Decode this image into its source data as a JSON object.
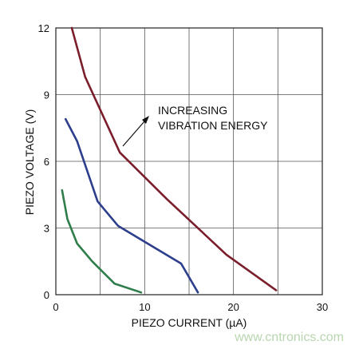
{
  "chart_data": {
    "type": "line",
    "title": "",
    "xlabel": "PIEZO CURRENT (µA)",
    "ylabel": "PIEZO VOLTAGE (V)",
    "xlim": [
      0,
      30
    ],
    "ylim": [
      0,
      12
    ],
    "xticks": [
      0,
      10,
      20,
      30
    ],
    "yticks": [
      0,
      3,
      6,
      9,
      12
    ],
    "minor_x_grid_step": 5,
    "grid": true,
    "annotation": [
      "INCREASING",
      "VIBRATION ENERGY"
    ],
    "series": [
      {
        "color": "#7b1e2b",
        "x": [
          1.8,
          3.3,
          7.2,
          12.5,
          19.2,
          24.8
        ],
        "y": [
          12.0,
          9.8,
          6.4,
          4.3,
          1.8,
          0.2
        ]
      },
      {
        "color": "#2c3e8c",
        "x": [
          1.1,
          2.4,
          4.7,
          7.0,
          14.1,
          16.0
        ],
        "y": [
          7.9,
          6.9,
          4.2,
          3.1,
          1.4,
          0.1
        ]
      },
      {
        "color": "#2e7d4a",
        "x": [
          0.7,
          1.3,
          2.4,
          4.1,
          6.6,
          9.6
        ],
        "y": [
          4.7,
          3.4,
          2.3,
          1.5,
          0.5,
          0.1
        ]
      }
    ]
  },
  "watermark": "www.cntronics.com"
}
